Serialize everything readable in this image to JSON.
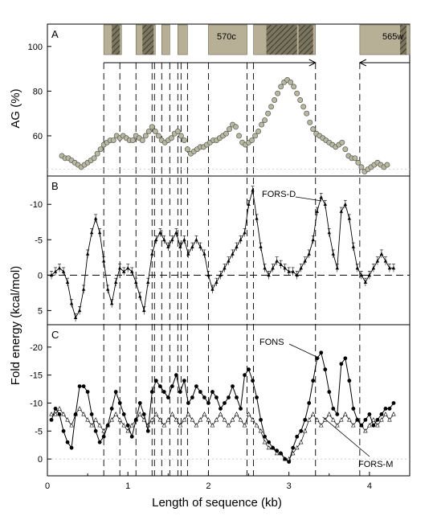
{
  "chart_data": [
    {
      "panel_label": "A",
      "type": "scatter",
      "ylabel": "AG (%)",
      "xlim": [
        0,
        4.5
      ],
      "ylim": [
        42,
        110
      ],
      "yticks": [
        "60",
        "80",
        "100"
      ],
      "gene_labels": [
        "570c",
        "565w"
      ],
      "series": [
        {
          "x": [
            0.18,
            0.22,
            0.26,
            0.3,
            0.34,
            0.38,
            0.42,
            0.46,
            0.5,
            0.54,
            0.58,
            0.62,
            0.66,
            0.7,
            0.74,
            0.78,
            0.82,
            0.86,
            0.9,
            0.94,
            0.98,
            1.02,
            1.06,
            1.1,
            1.14,
            1.18,
            1.22,
            1.26,
            1.3,
            1.34,
            1.38,
            1.42,
            1.46,
            1.5,
            1.54,
            1.58,
            1.62,
            1.66,
            1.7,
            1.74,
            1.78,
            1.82,
            1.86,
            1.9,
            1.94,
            1.98,
            2.02,
            2.06,
            2.1,
            2.14,
            2.18,
            2.22,
            2.26,
            2.3,
            2.34,
            2.38,
            2.42,
            2.46,
            2.5,
            2.54,
            2.58,
            2.62,
            2.66,
            2.7,
            2.74,
            2.78,
            2.82,
            2.86,
            2.9,
            2.94,
            2.98,
            3.02,
            3.06,
            3.1,
            3.14,
            3.18,
            3.22,
            3.26,
            3.3,
            3.34,
            3.38,
            3.42,
            3.46,
            3.5,
            3.54,
            3.58,
            3.62,
            3.66,
            3.7,
            3.74,
            3.78,
            3.82,
            3.86,
            3.9,
            3.94,
            3.98,
            4.02,
            4.06,
            4.1,
            4.14,
            4.18,
            4.22
          ],
          "y": [
            51,
            50,
            50,
            49,
            48,
            47,
            46,
            47,
            48,
            49,
            50,
            52,
            54,
            56,
            57,
            58,
            58,
            60,
            59,
            60,
            59,
            58,
            58,
            60,
            59,
            58,
            60,
            62,
            64,
            62,
            60,
            58,
            57,
            58,
            59,
            61,
            62,
            60,
            58,
            54,
            52,
            53,
            54,
            55,
            55,
            56,
            57,
            58,
            58,
            59,
            60,
            61,
            63,
            65,
            64,
            60,
            57,
            56,
            57,
            58,
            60,
            62,
            65,
            67,
            70,
            73,
            76,
            79,
            82,
            84,
            85,
            84,
            82,
            79,
            76,
            73,
            70,
            66,
            63,
            61,
            60,
            59,
            58,
            57,
            56,
            55,
            56,
            57,
            54,
            51,
            50,
            50,
            48,
            46,
            44,
            45,
            46,
            47,
            48,
            47,
            46,
            47
          ]
        }
      ]
    },
    {
      "panel_label": "B",
      "type": "line",
      "ylabel": "Fold energy (kcal/mol)",
      "xlim": [
        0,
        4.5
      ],
      "ylim": [
        7,
        -14
      ],
      "yticks": [
        "-10",
        "-5",
        "0",
        "5"
      ],
      "annotations": [
        "FORS-D"
      ],
      "series": [
        {
          "x": [
            0.05,
            0.1,
            0.15,
            0.2,
            0.25,
            0.3,
            0.35,
            0.4,
            0.45,
            0.5,
            0.55,
            0.6,
            0.65,
            0.7,
            0.75,
            0.8,
            0.85,
            0.9,
            0.95,
            1.0,
            1.05,
            1.1,
            1.15,
            1.2,
            1.25,
            1.3,
            1.35,
            1.4,
            1.45,
            1.5,
            1.55,
            1.6,
            1.65,
            1.7,
            1.75,
            1.8,
            1.85,
            1.9,
            1.95,
            2.0,
            2.05,
            2.1,
            2.15,
            2.2,
            2.25,
            2.3,
            2.35,
            2.4,
            2.45,
            2.5,
            2.55,
            2.6,
            2.65,
            2.7,
            2.75,
            2.8,
            2.85,
            2.9,
            2.95,
            3.0,
            3.05,
            3.1,
            3.15,
            3.2,
            3.25,
            3.3,
            3.35,
            3.4,
            3.45,
            3.5,
            3.55,
            3.6,
            3.65,
            3.7,
            3.75,
            3.8,
            3.85,
            3.9,
            3.95,
            4.0,
            4.05,
            4.1,
            4.15,
            4.2,
            4.25,
            4.3
          ],
          "y": [
            0,
            -0.5,
            -1,
            -0.5,
            1,
            4,
            6,
            5,
            2,
            -3,
            -6,
            -8,
            -6,
            -2,
            2,
            4,
            1,
            -1,
            -0.5,
            -1,
            -0.5,
            1,
            3,
            5,
            1,
            -3,
            -5,
            -6,
            -5,
            -4,
            -5,
            -6,
            -4,
            -5,
            -3,
            -4,
            -5,
            -4,
            -3,
            0,
            2,
            1,
            0,
            -1,
            -2,
            -3,
            -4,
            -5,
            -6,
            -10,
            -12,
            -8,
            -4,
            -1,
            0,
            -1,
            -2,
            -1.5,
            -1,
            -0.5,
            -0.5,
            0,
            -1,
            -2,
            -3,
            -5,
            -9,
            -11,
            -10,
            -6,
            -3,
            -1,
            -9,
            -10,
            -8,
            -4,
            -1,
            0,
            1,
            0,
            -1,
            -2,
            -3,
            -2,
            -1,
            -1
          ]
        }
      ]
    },
    {
      "panel_label": "C",
      "type": "line",
      "ylabel": "Fold energy (kcal/mol)",
      "xlabel": "Length of sequence (kb)",
      "xlim": [
        0,
        4.5
      ],
      "xticks": [
        "0",
        "1",
        "2",
        "3",
        "4"
      ],
      "ylim": [
        3,
        -24
      ],
      "yticks": [
        "-20",
        "-15",
        "-10",
        "-5",
        "0"
      ],
      "annotations": [
        "FONS",
        "FORS-M"
      ],
      "series": [
        {
          "name": "FONS",
          "x": [
            0.05,
            0.1,
            0.15,
            0.2,
            0.25,
            0.3,
            0.35,
            0.4,
            0.45,
            0.5,
            0.55,
            0.6,
            0.65,
            0.7,
            0.75,
            0.8,
            0.85,
            0.9,
            0.95,
            1.0,
            1.05,
            1.1,
            1.15,
            1.2,
            1.25,
            1.3,
            1.35,
            1.4,
            1.45,
            1.5,
            1.55,
            1.6,
            1.65,
            1.7,
            1.75,
            1.8,
            1.85,
            1.9,
            1.95,
            2.0,
            2.05,
            2.1,
            2.15,
            2.2,
            2.25,
            2.3,
            2.35,
            2.4,
            2.45,
            2.5,
            2.55,
            2.6,
            2.65,
            2.7,
            2.75,
            2.8,
            2.85,
            2.9,
            2.95,
            3.0,
            3.05,
            3.1,
            3.15,
            3.2,
            3.25,
            3.3,
            3.35,
            3.4,
            3.45,
            3.5,
            3.55,
            3.6,
            3.65,
            3.7,
            3.75,
            3.8,
            3.85,
            3.9,
            3.95,
            4.0,
            4.05,
            4.1,
            4.15,
            4.2,
            4.25,
            4.3
          ],
          "y": [
            -7,
            -9,
            -8,
            -5,
            -3,
            -2,
            -8,
            -13,
            -13,
            -12,
            -8,
            -5,
            -3,
            -4,
            -6,
            -9,
            -12,
            -10,
            -8,
            -6,
            -4,
            -7,
            -10,
            -8,
            -5,
            -12,
            -14,
            -13,
            -12,
            -11,
            -13,
            -15,
            -12,
            -14,
            -10,
            -11,
            -13,
            -12,
            -11,
            -10,
            -12,
            -11,
            -9,
            -10,
            -11,
            -13,
            -11,
            -9,
            -15,
            -16,
            -14,
            -11,
            -7,
            -4,
            -3,
            -2,
            -1.5,
            -1,
            0,
            0.5,
            -2,
            -4,
            -5,
            -7,
            -10,
            -14,
            -18,
            -19,
            -16,
            -12,
            -9,
            -8,
            -17,
            -18,
            -14,
            -9,
            -7,
            -6,
            -7,
            -8,
            -6,
            -7,
            -8,
            -9,
            -9,
            -10
          ]
        },
        {
          "name": "FORS-M",
          "x": [
            0.05,
            0.1,
            0.15,
            0.2,
            0.25,
            0.3,
            0.35,
            0.4,
            0.45,
            0.5,
            0.55,
            0.6,
            0.65,
            0.7,
            0.75,
            0.8,
            0.85,
            0.9,
            0.95,
            1.0,
            1.05,
            1.1,
            1.15,
            1.2,
            1.25,
            1.3,
            1.35,
            1.4,
            1.45,
            1.5,
            1.55,
            1.6,
            1.65,
            1.7,
            1.75,
            1.8,
            1.85,
            1.9,
            1.95,
            2.0,
            2.05,
            2.1,
            2.15,
            2.2,
            2.25,
            2.3,
            2.35,
            2.4,
            2.45,
            2.5,
            2.55,
            2.6,
            2.65,
            2.7,
            2.75,
            2.8,
            2.85,
            2.9,
            2.95,
            3.0,
            3.05,
            3.1,
            3.15,
            3.2,
            3.25,
            3.3,
            3.35,
            3.4,
            3.45,
            3.5,
            3.55,
            3.6,
            3.65,
            3.7,
            3.75,
            3.8,
            3.85,
            3.9,
            3.95,
            4.0,
            4.05,
            4.1,
            4.15,
            4.2,
            4.25,
            4.3
          ],
          "y": [
            -8,
            -8,
            -9,
            -8,
            -7,
            -6,
            -8,
            -9,
            -8,
            -7,
            -6,
            -7,
            -6,
            -5,
            -6,
            -7,
            -8,
            -7,
            -6,
            -5,
            -6,
            -7,
            -8,
            -7,
            -6,
            -7,
            -8,
            -7,
            -6,
            -7,
            -8,
            -7,
            -6,
            -7,
            -8,
            -7,
            -6,
            -7,
            -8,
            -7,
            -6,
            -7,
            -8,
            -7,
            -6,
            -7,
            -8,
            -7,
            -6,
            -8,
            -7,
            -6,
            -5,
            -3,
            -2,
            -2,
            -1,
            -1,
            0,
            0,
            -1,
            -2,
            -3,
            -5,
            -7,
            -8,
            -7,
            -6,
            -7,
            -8,
            -7,
            -6,
            -7,
            -8,
            -7,
            -6,
            -7,
            -6,
            -5,
            -6,
            -7,
            -6,
            -7,
            -8,
            -7,
            -8
          ]
        }
      ]
    }
  ],
  "shared": {
    "x_dividers": [
      0.7,
      0.9,
      1.1,
      1.3,
      1.33,
      1.42,
      1.52,
      1.62,
      1.66,
      1.74,
      2.0,
      2.48,
      2.56,
      3.33,
      3.88
    ],
    "blocks": [
      {
        "start": 0.7,
        "end": 0.92,
        "hatch": [
          0.8,
          0.9
        ]
      },
      {
        "start": 1.1,
        "end": 1.34,
        "hatch": [
          1.18,
          1.32
        ]
      },
      {
        "start": 1.42,
        "end": 1.52,
        "hatch": []
      },
      {
        "start": 1.62,
        "end": 1.74,
        "hatch": []
      },
      {
        "start": 2.0,
        "end": 2.48,
        "hatch": []
      },
      {
        "start": 2.56,
        "end": 3.33,
        "hatch": [
          2.72,
          2.82,
          2.82,
          3.1,
          3.12,
          3.3
        ]
      },
      {
        "start": 3.88,
        "end": 4.5,
        "hatch": [
          4.38,
          4.46
        ]
      }
    ],
    "arrows": [
      {
        "from": 0.7,
        "to": 3.33
      },
      {
        "from": 4.5,
        "to": 3.88
      }
    ],
    "colors": {
      "block_fill": "#b8b096",
      "marker_A": "#b9b9a0",
      "line": "#000000"
    }
  }
}
